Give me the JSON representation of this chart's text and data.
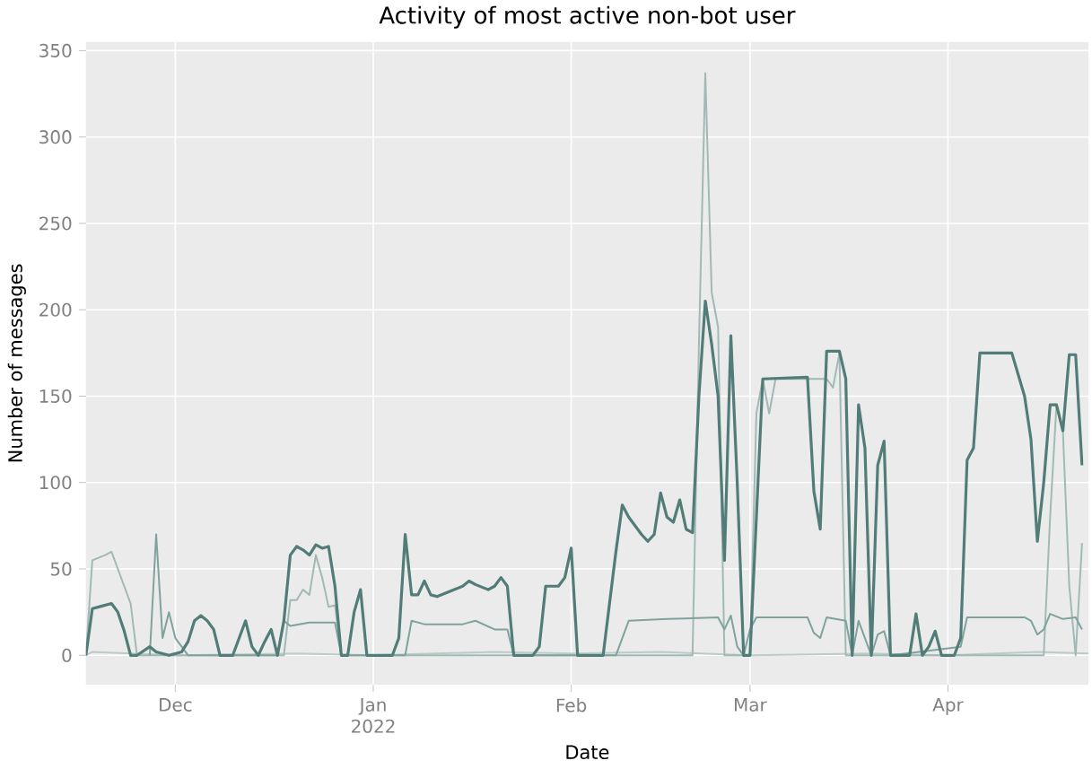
{
  "chart_data": {
    "type": "line",
    "title": "Activity of most active non-bot user",
    "xlabel": "Date",
    "ylabel": "Number of messages",
    "grid": true,
    "xlim": [
      "2021-11-17",
      "2022-04-23"
    ],
    "ylim": [
      -17,
      355
    ],
    "xticks": [
      {
        "value": "2021-12-01",
        "label": "Dec"
      },
      {
        "value": "2022-01-01",
        "label": "Jan 2022"
      },
      {
        "value": "2022-02-01",
        "label": "Feb"
      },
      {
        "value": "2022-03-01",
        "label": "Mar"
      },
      {
        "value": "2022-04-01",
        "label": "Apr"
      }
    ],
    "yticks": [
      0,
      50,
      100,
      150,
      200,
      250,
      300,
      350
    ],
    "series": [
      {
        "color": "#bccbc8",
        "x": [
          "2021-11-17",
          "2021-11-18",
          "2021-12-01",
          "2021-12-20",
          "2022-01-01",
          "2022-01-20",
          "2022-02-01",
          "2022-02-15",
          "2022-03-01",
          "2022-03-20",
          "2022-04-01",
          "2022-04-15",
          "2022-04-23"
        ],
        "values": [
          0,
          2,
          0,
          1,
          0,
          2,
          1,
          2,
          0,
          1,
          0,
          2,
          1
        ]
      },
      {
        "color": "#a1b9b5",
        "x": [
          "2021-11-17",
          "2021-11-18",
          "2021-11-20",
          "2021-11-21",
          "2021-11-24",
          "2021-11-25",
          "2021-12-18",
          "2021-12-19",
          "2021-12-20",
          "2021-12-21",
          "2021-12-22",
          "2021-12-23",
          "2021-12-24",
          "2021-12-25",
          "2021-12-26",
          "2021-12-27",
          "2022-02-20",
          "2022-02-21",
          "2022-02-22",
          "2022-02-23",
          "2022-02-24",
          "2022-02-25",
          "2022-03-01",
          "2022-03-02",
          "2022-03-03",
          "2022-03-04",
          "2022-03-05",
          "2022-03-13",
          "2022-03-14",
          "2022-03-15",
          "2022-03-16",
          "2022-04-16",
          "2022-04-17",
          "2022-04-18",
          "2022-04-19",
          "2022-04-20",
          "2022-04-21",
          "2022-04-22"
        ],
        "values": [
          0,
          55,
          58,
          60,
          30,
          0,
          0,
          32,
          32,
          38,
          35,
          58,
          45,
          28,
          29,
          0,
          0,
          180,
          337,
          210,
          190,
          0,
          0,
          140,
          160,
          140,
          160,
          160,
          155,
          175,
          0,
          0,
          80,
          145,
          130,
          40,
          0,
          65
        ]
      },
      {
        "color": "#7fa29d",
        "x": [
          "2021-11-27",
          "2021-11-28",
          "2021-11-29",
          "2021-11-30",
          "2021-12-01",
          "2021-12-02",
          "2021-12-03",
          "2021-12-17",
          "2021-12-18",
          "2021-12-19",
          "2021-12-22",
          "2021-12-26",
          "2021-12-27",
          "2022-01-06",
          "2022-01-07",
          "2022-01-09",
          "2022-01-15",
          "2022-01-17",
          "2022-01-20",
          "2022-01-22",
          "2022-01-23",
          "2022-02-08",
          "2022-02-10",
          "2022-02-16",
          "2022-02-24",
          "2022-02-25",
          "2022-02-26",
          "2022-02-27",
          "2022-02-28",
          "2022-03-01",
          "2022-03-02",
          "2022-03-10",
          "2022-03-11",
          "2022-03-12",
          "2022-03-13",
          "2022-03-16",
          "2022-03-17",
          "2022-03-18",
          "2022-03-19",
          "2022-03-20",
          "2022-03-21",
          "2022-03-22",
          "2022-03-23",
          "2022-04-03",
          "2022-04-04",
          "2022-04-13",
          "2022-04-14",
          "2022-04-15",
          "2022-04-16",
          "2022-04-17",
          "2022-04-19",
          "2022-04-21",
          "2022-04-22"
        ],
        "values": [
          0,
          70,
          10,
          25,
          10,
          5,
          0,
          0,
          20,
          17,
          19,
          19,
          0,
          0,
          20,
          18,
          18,
          20,
          15,
          15,
          0,
          0,
          20,
          21,
          22,
          15,
          23,
          5,
          0,
          15,
          22,
          22,
          13,
          10,
          22,
          20,
          0,
          20,
          10,
          0,
          12,
          14,
          0,
          5,
          22,
          22,
          20,
          12,
          15,
          24,
          21,
          22,
          15
        ]
      },
      {
        "color": "#517c77",
        "x": [
          "2021-11-17",
          "2021-11-18",
          "2021-11-19",
          "2021-11-21",
          "2021-11-22",
          "2021-11-23",
          "2021-11-24",
          "2021-11-25",
          "2021-11-27",
          "2021-11-28",
          "2021-11-30",
          "2021-12-02",
          "2021-12-03",
          "2021-12-04",
          "2021-12-05",
          "2021-12-06",
          "2021-12-07",
          "2021-12-08",
          "2021-12-10",
          "2021-12-11",
          "2021-12-12",
          "2021-12-13",
          "2021-12-14",
          "2021-12-15",
          "2021-12-16",
          "2021-12-17",
          "2021-12-18",
          "2021-12-19",
          "2021-12-20",
          "2021-12-21",
          "2021-12-22",
          "2021-12-23",
          "2021-12-24",
          "2021-12-25",
          "2021-12-26",
          "2021-12-27",
          "2021-12-28",
          "2021-12-29",
          "2021-12-30",
          "2021-12-31",
          "2022-01-04",
          "2022-01-05",
          "2022-01-06",
          "2022-01-07",
          "2022-01-08",
          "2022-01-09",
          "2022-01-10",
          "2022-01-11",
          "2022-01-13",
          "2022-01-15",
          "2022-01-16",
          "2022-01-17",
          "2022-01-19",
          "2022-01-20",
          "2022-01-21",
          "2022-01-22",
          "2022-01-23",
          "2022-01-26",
          "2022-01-27",
          "2022-01-28",
          "2022-01-30",
          "2022-01-31",
          "2022-02-01",
          "2022-02-02",
          "2022-02-06",
          "2022-02-08",
          "2022-02-09",
          "2022-02-10",
          "2022-02-12",
          "2022-02-13",
          "2022-02-14",
          "2022-02-15",
          "2022-02-16",
          "2022-02-17",
          "2022-02-18",
          "2022-02-19",
          "2022-02-20",
          "2022-02-21",
          "2022-02-22",
          "2022-02-23",
          "2022-02-24",
          "2022-02-25",
          "2022-02-26",
          "2022-02-27",
          "2022-02-28",
          "2022-03-01",
          "2022-03-02",
          "2022-03-03",
          "2022-03-10",
          "2022-03-11",
          "2022-03-12",
          "2022-03-13",
          "2022-03-15",
          "2022-03-16",
          "2022-03-17",
          "2022-03-18",
          "2022-03-19",
          "2022-03-20",
          "2022-03-21",
          "2022-03-22",
          "2022-03-23",
          "2022-03-26",
          "2022-03-27",
          "2022-03-28",
          "2022-03-29",
          "2022-03-30",
          "2022-03-31",
          "2022-04-02",
          "2022-04-03",
          "2022-04-04",
          "2022-04-05",
          "2022-04-06",
          "2022-04-11",
          "2022-04-13",
          "2022-04-14",
          "2022-04-15",
          "2022-04-16",
          "2022-04-17",
          "2022-04-18",
          "2022-04-19",
          "2022-04-20",
          "2022-04-21",
          "2022-04-22"
        ],
        "values": [
          0,
          27,
          28,
          30,
          25,
          14,
          0,
          0,
          5,
          2,
          0,
          2,
          8,
          20,
          23,
          20,
          15,
          0,
          0,
          10,
          20,
          5,
          0,
          8,
          15,
          0,
          20,
          58,
          63,
          61,
          58,
          64,
          62,
          63,
          40,
          0,
          0,
          25,
          38,
          0,
          0,
          10,
          70,
          35,
          35,
          43,
          35,
          34,
          37,
          40,
          43,
          41,
          38,
          40,
          45,
          40,
          0,
          0,
          5,
          40,
          40,
          45,
          62,
          0,
          0,
          60,
          87,
          80,
          70,
          66,
          70,
          94,
          80,
          77,
          90,
          73,
          71,
          150,
          205,
          180,
          150,
          55,
          185,
          100,
          0,
          0,
          80,
          160,
          161,
          95,
          73,
          176,
          176,
          160,
          0,
          145,
          120,
          0,
          110,
          124,
          0,
          0,
          24,
          0,
          5,
          14,
          0,
          0,
          10,
          113,
          120,
          175,
          175,
          150,
          125,
          66,
          100,
          145,
          145,
          130,
          174,
          174,
          110
        ]
      }
    ]
  }
}
